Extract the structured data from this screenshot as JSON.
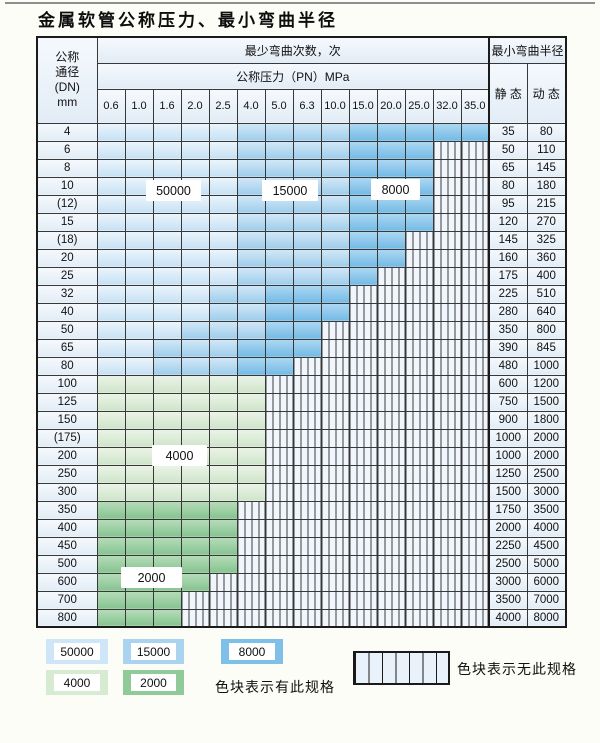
{
  "title": "金属软管公称压力、最小弯曲半径",
  "table": {
    "header": {
      "dn_lines": [
        "公称",
        "通径",
        "(DN)",
        "mm"
      ],
      "bend_cycles_label": "最少弯曲次数，次",
      "pressure_label": "公称压力（PN）MPa",
      "pressures": [
        "0.6",
        "1.0",
        "1.6",
        "2.0",
        "2.5",
        "4.0",
        "5.0",
        "6.3",
        "10.0",
        "15.0",
        "20.0",
        "25.0",
        "32.0",
        "35.0"
      ],
      "radius_label": "最小弯曲半径",
      "static_label": "静 态",
      "dynamic_label": "动 态"
    },
    "rows": [
      {
        "dn": "4",
        "cells": [
          "b50",
          "b50",
          "b50",
          "b50",
          "b50",
          "b15",
          "b15",
          "b15",
          "b15",
          "b8",
          "b8",
          "b8",
          "b8",
          "b8"
        ],
        "r_static": "35",
        "r_dynamic": "80"
      },
      {
        "dn": "6",
        "cells": [
          "b50",
          "b50",
          "b50",
          "b50",
          "b50",
          "b15",
          "b15",
          "b15",
          "b15",
          "b8",
          "b8",
          "b8",
          "x",
          "x"
        ],
        "r_static": "50",
        "r_dynamic": "110"
      },
      {
        "dn": "8",
        "cells": [
          "b50",
          "b50",
          "b50",
          "b50",
          "b50",
          "b15",
          "b15",
          "b15",
          "b15",
          "b8",
          "b8",
          "b8",
          "x",
          "x"
        ],
        "r_static": "65",
        "r_dynamic": "145"
      },
      {
        "dn": "10",
        "cells": [
          "b50",
          "b50",
          "b50",
          "b50",
          "b50",
          "b15",
          "b15",
          "b15",
          "b15",
          "b8",
          "b8",
          "b8",
          "x",
          "x"
        ],
        "r_static": "80",
        "r_dynamic": "180"
      },
      {
        "dn": "(12)",
        "cells": [
          "b50",
          "b50",
          "b50",
          "b50",
          "b50",
          "b15",
          "b15",
          "b15",
          "b15",
          "b8",
          "b8",
          "b8",
          "x",
          "x"
        ],
        "r_static": "95",
        "r_dynamic": "215"
      },
      {
        "dn": "15",
        "cells": [
          "b50",
          "b50",
          "b50",
          "b50",
          "b50",
          "b15",
          "b15",
          "b15",
          "b15",
          "b8",
          "b8",
          "b8",
          "x",
          "x"
        ],
        "r_static": "120",
        "r_dynamic": "270"
      },
      {
        "dn": "(18)",
        "cells": [
          "b50",
          "b50",
          "b50",
          "b50",
          "b50",
          "b15",
          "b15",
          "b15",
          "b15",
          "b8",
          "b8",
          "x",
          "x",
          "x"
        ],
        "r_static": "145",
        "r_dynamic": "325"
      },
      {
        "dn": "20",
        "cells": [
          "b50",
          "b50",
          "b50",
          "b50",
          "b50",
          "b15",
          "b15",
          "b15",
          "b15",
          "b8",
          "b8",
          "x",
          "x",
          "x"
        ],
        "r_static": "160",
        "r_dynamic": "360"
      },
      {
        "dn": "25",
        "cells": [
          "b50",
          "b50",
          "b50",
          "b50",
          "b50",
          "b15",
          "b15",
          "b15",
          "b15",
          "b8",
          "x",
          "x",
          "x",
          "x"
        ],
        "r_static": "175",
        "r_dynamic": "400"
      },
      {
        "dn": "32",
        "cells": [
          "b50",
          "b50",
          "b50",
          "b50",
          "b15",
          "b15",
          "b8",
          "b8",
          "b8",
          "x",
          "x",
          "x",
          "x",
          "x"
        ],
        "r_static": "225",
        "r_dynamic": "510"
      },
      {
        "dn": "40",
        "cells": [
          "b50",
          "b50",
          "b50",
          "b50",
          "b15",
          "b15",
          "b8",
          "b8",
          "b8",
          "x",
          "x",
          "x",
          "x",
          "x"
        ],
        "r_static": "280",
        "r_dynamic": "640"
      },
      {
        "dn": "50",
        "cells": [
          "b50",
          "b50",
          "b50",
          "b15",
          "b15",
          "b15",
          "b8",
          "b8",
          "x",
          "x",
          "x",
          "x",
          "x",
          "x"
        ],
        "r_static": "350",
        "r_dynamic": "800"
      },
      {
        "dn": "65",
        "cells": [
          "b50",
          "b50",
          "b15",
          "b15",
          "b15",
          "b8",
          "b8",
          "b8",
          "x",
          "x",
          "x",
          "x",
          "x",
          "x"
        ],
        "r_static": "390",
        "r_dynamic": "845"
      },
      {
        "dn": "80",
        "cells": [
          "b50",
          "b50",
          "b15",
          "b15",
          "b15",
          "b8",
          "b8",
          "x",
          "x",
          "x",
          "x",
          "x",
          "x",
          "x"
        ],
        "r_static": "480",
        "r_dynamic": "1000"
      },
      {
        "dn": "100",
        "cells": [
          "g4",
          "g4",
          "g4",
          "g4",
          "g4",
          "g4",
          "x",
          "x",
          "x",
          "x",
          "x",
          "x",
          "x",
          "x"
        ],
        "r_static": "600",
        "r_dynamic": "1200"
      },
      {
        "dn": "125",
        "cells": [
          "g4",
          "g4",
          "g4",
          "g4",
          "g4",
          "g4",
          "x",
          "x",
          "x",
          "x",
          "x",
          "x",
          "x",
          "x"
        ],
        "r_static": "750",
        "r_dynamic": "1500"
      },
      {
        "dn": "150",
        "cells": [
          "g4",
          "g4",
          "g4",
          "g4",
          "g4",
          "g4",
          "x",
          "x",
          "x",
          "x",
          "x",
          "x",
          "x",
          "x"
        ],
        "r_static": "900",
        "r_dynamic": "1800"
      },
      {
        "dn": "(175)",
        "cells": [
          "g4",
          "g4",
          "g4",
          "g4",
          "g4",
          "g4",
          "x",
          "x",
          "x",
          "x",
          "x",
          "x",
          "x",
          "x"
        ],
        "r_static": "1000",
        "r_dynamic": "2000"
      },
      {
        "dn": "200",
        "cells": [
          "g4",
          "g4",
          "g4",
          "g4",
          "g4",
          "g4",
          "x",
          "x",
          "x",
          "x",
          "x",
          "x",
          "x",
          "x"
        ],
        "r_static": "1000",
        "r_dynamic": "2000"
      },
      {
        "dn": "250",
        "cells": [
          "g4",
          "g4",
          "g4",
          "g4",
          "g4",
          "g4",
          "x",
          "x",
          "x",
          "x",
          "x",
          "x",
          "x",
          "x"
        ],
        "r_static": "1250",
        "r_dynamic": "2500"
      },
      {
        "dn": "300",
        "cells": [
          "g4",
          "g4",
          "g4",
          "g4",
          "g4",
          "g4",
          "x",
          "x",
          "x",
          "x",
          "x",
          "x",
          "x",
          "x"
        ],
        "r_static": "1500",
        "r_dynamic": "3000"
      },
      {
        "dn": "350",
        "cells": [
          "g2",
          "g2",
          "g2",
          "g2",
          "g2",
          "x",
          "x",
          "x",
          "x",
          "x",
          "x",
          "x",
          "x",
          "x"
        ],
        "r_static": "1750",
        "r_dynamic": "3500"
      },
      {
        "dn": "400",
        "cells": [
          "g2",
          "g2",
          "g2",
          "g2",
          "g2",
          "x",
          "x",
          "x",
          "x",
          "x",
          "x",
          "x",
          "x",
          "x"
        ],
        "r_static": "2000",
        "r_dynamic": "4000"
      },
      {
        "dn": "450",
        "cells": [
          "g2",
          "g2",
          "g2",
          "g2",
          "g2",
          "x",
          "x",
          "x",
          "x",
          "x",
          "x",
          "x",
          "x",
          "x"
        ],
        "r_static": "2250",
        "r_dynamic": "4500"
      },
      {
        "dn": "500",
        "cells": [
          "g2",
          "g2",
          "g2",
          "g2",
          "g2",
          "x",
          "x",
          "x",
          "x",
          "x",
          "x",
          "x",
          "x",
          "x"
        ],
        "r_static": "2500",
        "r_dynamic": "5000"
      },
      {
        "dn": "600",
        "cells": [
          "g2",
          "g2",
          "g2",
          "g2",
          "x",
          "x",
          "x",
          "x",
          "x",
          "x",
          "x",
          "x",
          "x",
          "x"
        ],
        "r_static": "3000",
        "r_dynamic": "6000"
      },
      {
        "dn": "700",
        "cells": [
          "g2",
          "g2",
          "g2",
          "x",
          "x",
          "x",
          "x",
          "x",
          "x",
          "x",
          "x",
          "x",
          "x",
          "x"
        ],
        "r_static": "3500",
        "r_dynamic": "7000"
      },
      {
        "dn": "800",
        "cells": [
          "g2",
          "g2",
          "g2",
          "x",
          "x",
          "x",
          "x",
          "x",
          "x",
          "x",
          "x",
          "x",
          "x",
          "x"
        ],
        "r_static": "4000",
        "r_dynamic": "8000"
      }
    ]
  },
  "overlay_labels": {
    "l50000": "50000",
    "l15000": "15000",
    "l8000": "8000",
    "l4000": "4000",
    "l2000": "2000"
  },
  "legend": {
    "items": [
      {
        "value": "50000",
        "type": "b50",
        "color": "#cfe6f8"
      },
      {
        "value": "15000",
        "type": "b15",
        "color": "#a9d3ef"
      },
      {
        "value": "8000",
        "type": "b8",
        "color": "#7fc0e9"
      },
      {
        "value": "4000",
        "type": "g4",
        "color": "#d7ead2"
      },
      {
        "value": "2000",
        "type": "g2",
        "color": "#90ca99"
      }
    ],
    "has_spec_text": "色块表示有此规格",
    "no_spec_text": "色块表示无此规格"
  }
}
